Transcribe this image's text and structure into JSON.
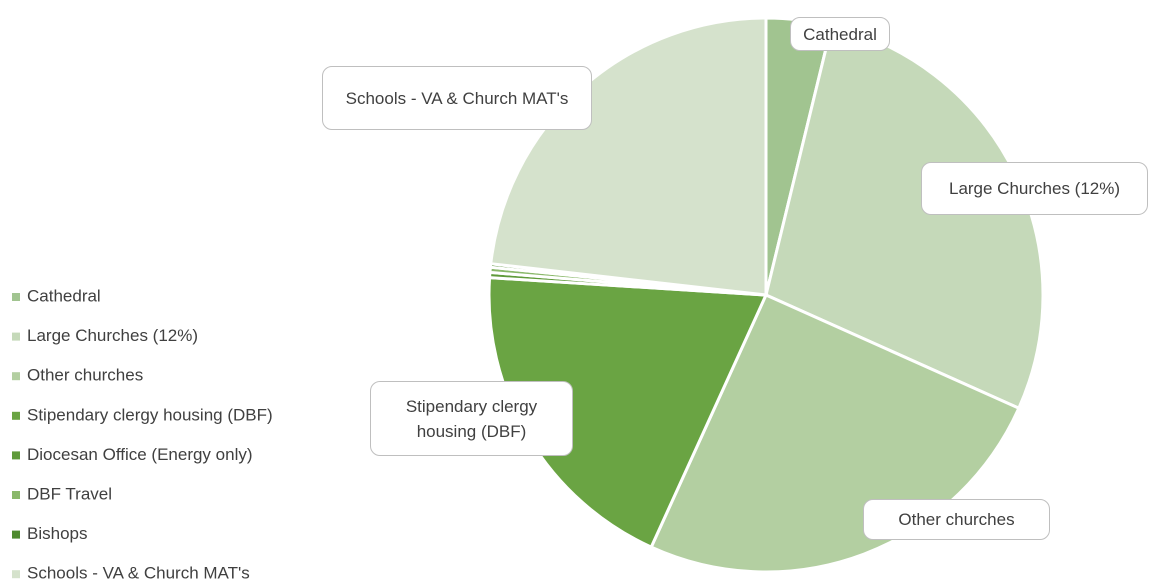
{
  "chart_data": {
    "type": "pie",
    "categories": [
      "Cathedral",
      "Large Churches (12%)",
      "Other churches",
      "Stipendary clergy housing (DBF)",
      "Diocesan Office (Energy only)",
      "DBF Travel",
      "Bishops",
      "Schools - VA & Church MAT's"
    ],
    "values": [
      3.8,
      27.9,
      25.1,
      19.2,
      0.3,
      0.3,
      0.2,
      23.2
    ],
    "colors": [
      "#a1c490",
      "#c5d9b9",
      "#b3cfa1",
      "#6aa443",
      "#5f9a3a",
      "#8ab86a",
      "#4e8a2e",
      "#d5e2cc"
    ],
    "legend": "left"
  }
}
